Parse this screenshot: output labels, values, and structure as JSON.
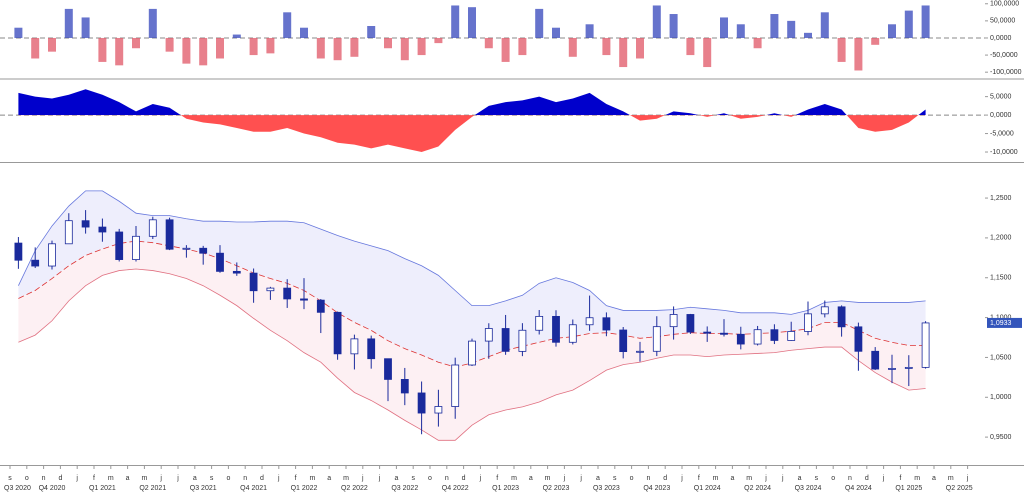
{
  "chart_data": [
    {
      "type": "histogram-bars",
      "positive_color": "#3344bb",
      "negative_color": "#e05565",
      "values": [
        30000,
        -60000,
        -40000,
        85000,
        60000,
        -70000,
        -80000,
        -30000,
        85000,
        -40000,
        -75000,
        -80000,
        -60000,
        10000,
        -50000,
        -45000,
        75000,
        30000,
        -60000,
        -65000,
        -55000,
        35000,
        -30000,
        -65000,
        -50000,
        -15000,
        95000,
        90000,
        -30000,
        -70000,
        -50000,
        85000,
        30000,
        -55000,
        40000,
        -50000,
        -85000,
        -60000,
        95000,
        70000,
        -50000,
        -85000,
        60000,
        40000,
        -30000,
        70000,
        50000,
        15000,
        75000,
        -70000,
        -95000,
        -20000,
        40000,
        80000,
        95000,
        null,
        null,
        null
      ],
      "ylim": [
        -117000,
        111000
      ],
      "yticks": [
        {
          "value": 100000,
          "label": "100,0000"
        },
        {
          "value": 50000,
          "label": "50,0000"
        },
        {
          "value": 0,
          "label": "0,0000"
        },
        {
          "value": -50000,
          "label": "-50,0000"
        },
        {
          "value": -100000,
          "label": "-100,0000"
        }
      ]
    },
    {
      "type": "area",
      "positive_color": "#0000cc",
      "negative_color": "#ff5050",
      "values": [
        6000,
        5000,
        4500,
        5500,
        7000,
        5500,
        3500,
        1000,
        3000,
        2000,
        -1000,
        -2000,
        -2500,
        -3500,
        -4500,
        -4500,
        -3500,
        -5000,
        -6000,
        -7500,
        -8000,
        -9000,
        -8000,
        -9000,
        -10000,
        -8500,
        -4000,
        -500,
        2500,
        3500,
        4000,
        5000,
        3500,
        4500,
        6000,
        3000,
        1000,
        -1500,
        -1000,
        1000,
        500,
        -500,
        500,
        -1000,
        -500,
        500,
        -500,
        1500,
        3000,
        1500,
        -3500,
        -4500,
        -4000,
        -2000,
        1500,
        null,
        null,
        null
      ],
      "ylim": [
        -12700,
        9500
      ],
      "yticks": [
        {
          "value": 5000,
          "label": "5,0000"
        },
        {
          "value": 0,
          "label": "0,0000"
        },
        {
          "value": -5000,
          "label": "-5,0000"
        },
        {
          "value": -10000,
          "label": "-10,0000"
        }
      ]
    },
    {
      "type": "candlestick",
      "categories": [
        "s",
        "o",
        "n",
        "d",
        "j",
        "f",
        "m",
        "a",
        "m",
        "j",
        "j",
        "a",
        "s",
        "o",
        "n",
        "d",
        "j",
        "f",
        "m",
        "a",
        "m",
        "j",
        "j",
        "a",
        "s",
        "o",
        "n",
        "d",
        "j",
        "f",
        "m",
        "a",
        "m",
        "j",
        "j",
        "a",
        "s",
        "o",
        "n",
        "d",
        "j",
        "f",
        "m",
        "a",
        "m",
        "j",
        "j",
        "a",
        "s",
        "o",
        "n",
        "d",
        "j",
        "f",
        "m",
        "a",
        "m",
        "j"
      ],
      "quarter_labels": [
        "Q3 2020",
        "Q4 2020",
        "Q1 2021",
        "Q2 2021",
        "Q3 2021",
        "Q4 2021",
        "Q1 2022",
        "Q2 2022",
        "Q3 2022",
        "Q4 2022",
        "Q1 2023",
        "Q2 2023",
        "Q3 2023",
        "Q4 2023",
        "Q1 2024",
        "Q2 2024",
        "Q3 2024",
        "Q4 2024",
        "Q1 2025",
        "Q2 2025"
      ],
      "open": [
        1.1935,
        1.172,
        1.1647,
        1.1926,
        1.2216,
        1.2136,
        1.2074,
        1.1728,
        1.202,
        1.2227,
        1.1858,
        1.187,
        1.1808,
        1.158,
        1.1558,
        1.1337,
        1.137,
        1.1234,
        1.1219,
        1.1066,
        1.0545,
        1.0733,
        1.0484,
        1.0224,
        1.0054,
        0.9802,
        0.9884,
        1.0405,
        1.0705,
        1.0863,
        1.0576,
        1.0841,
        1.1015,
        1.069,
        1.091,
        1.0998,
        1.0844,
        1.0573,
        1.0577,
        1.0886,
        1.1039,
        1.0818,
        1.0804,
        1.079,
        1.0668,
        1.0848,
        1.0713,
        1.0826,
        1.1047,
        1.1135,
        1.0884,
        1.0577,
        1.0354,
        1.0362,
        1.0375,
        null,
        null,
        null
      ],
      "high": [
        1.2011,
        1.1881,
        1.1966,
        1.231,
        1.2349,
        1.2243,
        1.2113,
        1.215,
        1.2266,
        1.2254,
        1.1909,
        1.19,
        1.1909,
        1.1692,
        1.1616,
        1.1386,
        1.1482,
        1.1495,
        1.1233,
        1.1076,
        1.0786,
        1.0774,
        1.0486,
        1.0368,
        1.0198,
        1.0094,
        1.0497,
        1.0736,
        1.0929,
        1.1033,
        1.093,
        1.1095,
        1.1092,
        1.0976,
        1.1276,
        1.1065,
        1.0882,
        1.0695,
        1.1017,
        1.114,
        1.1046,
        1.0889,
        1.0981,
        1.0885,
        1.0895,
        1.0916,
        1.0948,
        1.1202,
        1.1214,
        1.1153,
        1.0937,
        1.063,
        1.0533,
        1.0528,
        1.0955,
        null,
        null,
        null
      ],
      "low": [
        1.1612,
        1.1622,
        1.1603,
        1.1925,
        1.2054,
        1.1952,
        1.1704,
        1.1704,
        1.1986,
        1.1847,
        1.1752,
        1.1664,
        1.1563,
        1.1524,
        1.1186,
        1.1222,
        1.1121,
        1.1106,
        1.0806,
        1.0471,
        1.0349,
        1.0359,
        0.9952,
        0.9901,
        0.9536,
        0.9632,
        0.973,
        1.0393,
        1.0483,
        1.0533,
        1.0516,
        1.0788,
        1.0635,
        1.0663,
        1.0834,
        1.0766,
        1.0488,
        1.0448,
        1.0517,
        1.0724,
        1.0795,
        1.0695,
        1.0762,
        1.0601,
        1.065,
        1.0668,
        1.0709,
        1.0778,
        1.1002,
        1.0761,
        1.0333,
        1.0343,
        1.0178,
        1.0141,
        1.036,
        null,
        null,
        null
      ],
      "close": [
        1.172,
        1.1647,
        1.1926,
        1.2216,
        1.2136,
        1.2074,
        1.1728,
        1.202,
        1.2227,
        1.1858,
        1.187,
        1.1808,
        1.158,
        1.1558,
        1.1337,
        1.137,
        1.1234,
        1.1219,
        1.1066,
        1.0545,
        1.0733,
        1.0484,
        1.0224,
        1.0054,
        0.9802,
        0.9884,
        1.0405,
        1.0705,
        1.0863,
        1.0576,
        1.0841,
        1.1015,
        1.069,
        1.091,
        1.0998,
        1.0844,
        1.0573,
        1.0577,
        1.0886,
        1.1039,
        1.0818,
        1.0804,
        1.079,
        1.0668,
        1.0848,
        1.0713,
        1.0826,
        1.1047,
        1.1135,
        1.0884,
        1.0577,
        1.0354,
        1.0362,
        1.0375,
        1.0933,
        null,
        null,
        null
      ],
      "close_value_label": "1,0933",
      "up_color": "#ffffff",
      "down_color": "#1a2a9c",
      "tag_color": "#3355bb",
      "bands": [
        {
          "color": "#6677dd",
          "fill": "#eeeefc",
          "values": [
            1.14,
            1.184,
            1.215,
            1.24,
            1.259,
            1.259,
            1.246,
            1.231,
            1.228,
            1.228,
            1.224,
            1.221,
            1.221,
            1.22,
            1.22,
            1.221,
            1.221,
            1.219,
            1.211,
            1.203,
            1.196,
            1.19,
            1.184,
            1.174,
            1.165,
            1.153,
            1.134,
            1.115,
            1.115,
            1.121,
            1.128,
            1.143,
            1.15,
            1.144,
            1.134,
            1.115,
            1.109,
            1.109,
            1.109,
            1.11,
            1.113,
            1.111,
            1.109,
            1.106,
            1.106,
            1.106,
            1.104,
            1.109,
            1.119,
            1.121,
            1.119,
            1.119,
            1.119,
            1.119,
            1.121,
            null,
            null,
            null
          ]
        },
        {
          "color": "#dd3333",
          "fill": "#fdf0f3",
          "dashed": true,
          "values": [
            1.124,
            1.134,
            1.149,
            1.165,
            1.178,
            1.186,
            1.193,
            1.196,
            1.194,
            1.19,
            1.186,
            1.181,
            1.174,
            1.165,
            1.156,
            1.149,
            1.143,
            1.134,
            1.121,
            1.106,
            1.094,
            1.084,
            1.071,
            1.061,
            1.053,
            1.044,
            1.038,
            1.043,
            1.051,
            1.059,
            1.064,
            1.069,
            1.074,
            1.076,
            1.08,
            1.081,
            1.078,
            1.074,
            1.076,
            1.079,
            1.081,
            1.08,
            1.08,
            1.079,
            1.08,
            1.081,
            1.083,
            1.086,
            1.094,
            1.094,
            1.084,
            1.074,
            1.069,
            1.065,
            1.065,
            null,
            null,
            null
          ]
        },
        {
          "color": "#e07080",
          "values": [
            1.069,
            1.078,
            1.096,
            1.121,
            1.14,
            1.153,
            1.159,
            1.161,
            1.159,
            1.155,
            1.149,
            1.14,
            1.128,
            1.115,
            1.099,
            1.084,
            1.071,
            1.056,
            1.044,
            1.024,
            1.006,
            0.996,
            0.984,
            0.971,
            0.959,
            0.946,
            0.946,
            0.965,
            0.978,
            0.984,
            0.988,
            0.994,
            1.003,
            1.009,
            1.021,
            1.034,
            1.041,
            1.044,
            1.049,
            1.053,
            1.053,
            1.051,
            1.053,
            1.054,
            1.055,
            1.056,
            1.059,
            1.061,
            1.063,
            1.063,
            1.046,
            1.031,
            1.019,
            1.009,
            1.011,
            null,
            null,
            null
          ]
        }
      ],
      "ylim": [
        0.915,
        1.294
      ],
      "yticks": [
        {
          "value": 1.25,
          "label": "1,2500"
        },
        {
          "value": 1.2,
          "label": "1,2000"
        },
        {
          "value": 1.15,
          "label": "1,1500"
        },
        {
          "value": 1.1,
          "label": "1,1000"
        },
        {
          "value": 1.05,
          "label": "1,0500"
        },
        {
          "value": 1.0,
          "label": "1,0000"
        },
        {
          "value": 0.95,
          "label": "0,9500"
        }
      ]
    }
  ]
}
